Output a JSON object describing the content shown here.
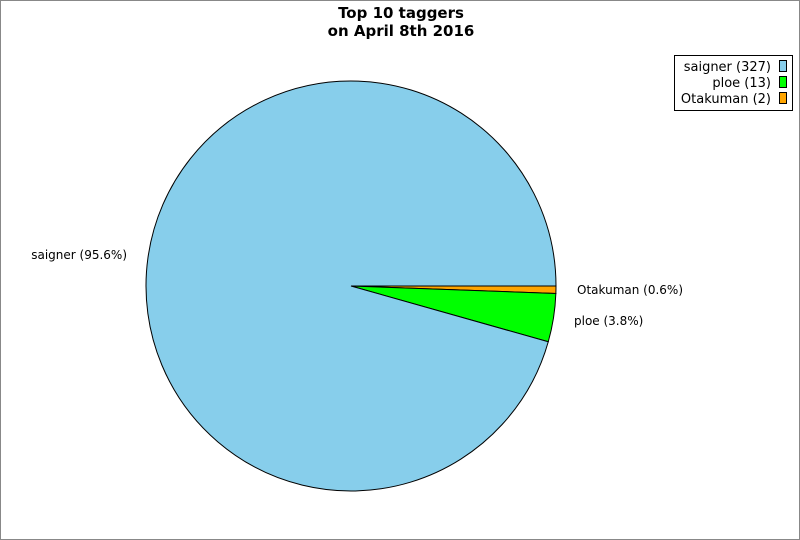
{
  "chart_data": {
    "type": "pie",
    "title_lines": [
      "Top 10 taggers",
      "on April 8th 2016"
    ],
    "legend_position": "top-right",
    "slices": [
      {
        "label": "Otakuman",
        "value": 2,
        "percent_label": "Otakuman (0.6%)",
        "legend_label": "Otakuman (2)",
        "color": "#FFA500"
      },
      {
        "label": "ploe",
        "value": 13,
        "percent_label": "ploe (3.8%)",
        "legend_label": "ploe (13)",
        "color": "#00FF00"
      },
      {
        "label": "saigner",
        "value": 327,
        "percent_label": "saigner (95.6%)",
        "legend_label": "saigner (327)",
        "color": "#87CEEB"
      }
    ]
  }
}
